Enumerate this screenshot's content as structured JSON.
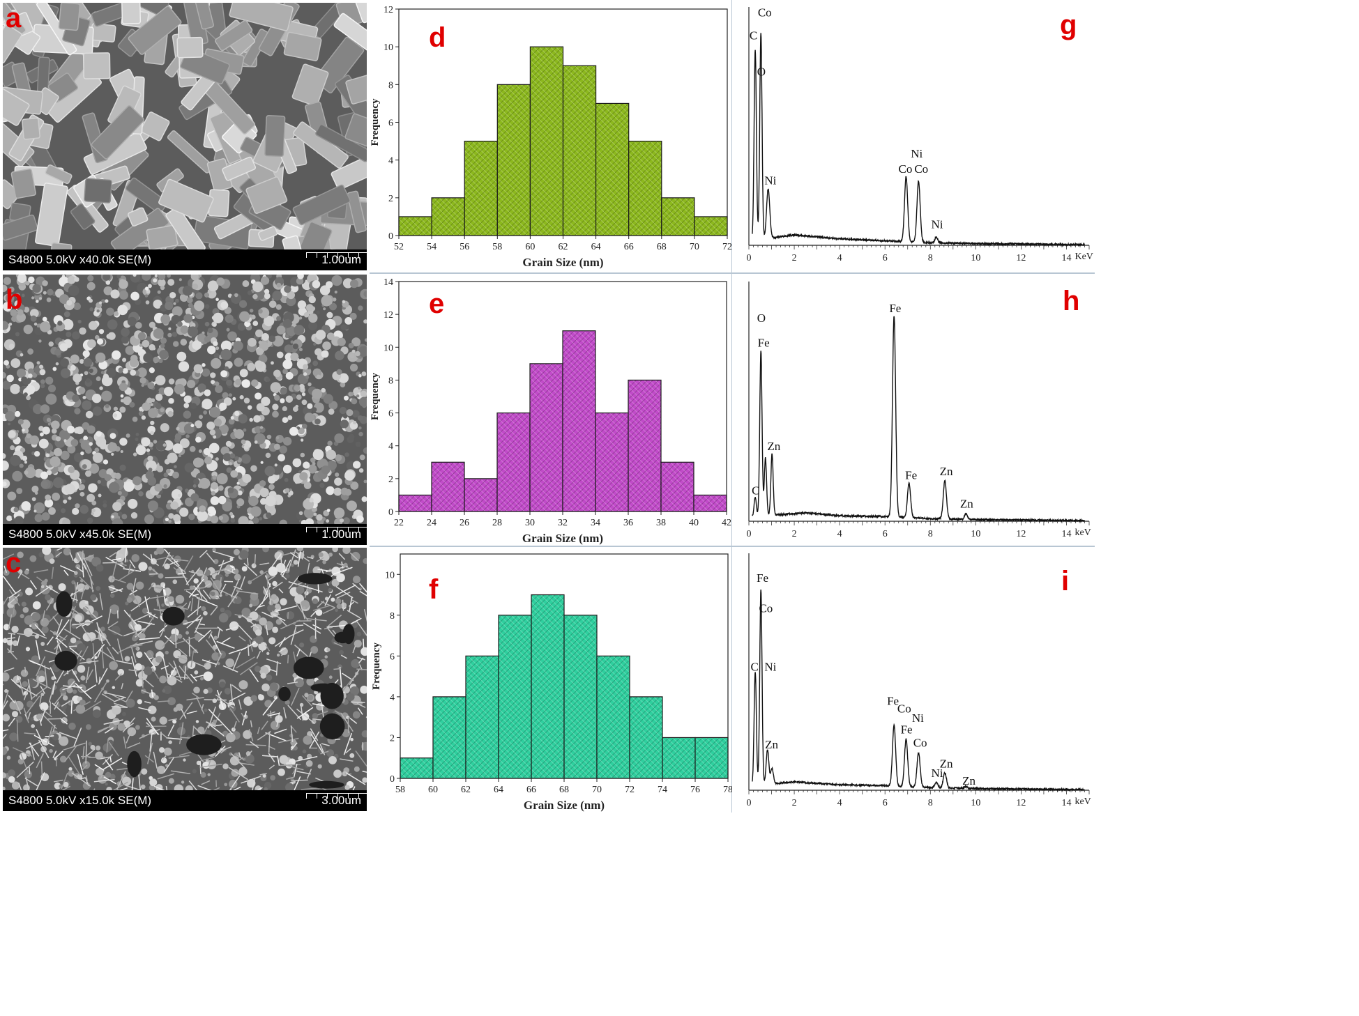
{
  "panels": [
    {
      "id": "a",
      "kind": "sem",
      "label": "a",
      "info": "S4800 5.0kV x40.0k SE(M)",
      "scale": "1.00um"
    },
    {
      "id": "b",
      "kind": "sem",
      "label": "b",
      "info": "S4800 5.0kV x45.0k SE(M)",
      "scale": "1.00um"
    },
    {
      "id": "c",
      "kind": "sem",
      "label": "c",
      "info": "S4800 5.0kV x15.0k SE(M)",
      "scale": "3.00um"
    },
    {
      "id": "d",
      "kind": "hist",
      "label": "d"
    },
    {
      "id": "e",
      "kind": "hist",
      "label": "e"
    },
    {
      "id": "f",
      "kind": "hist",
      "label": "f"
    },
    {
      "id": "g",
      "kind": "eds",
      "label": "g"
    },
    {
      "id": "h",
      "kind": "eds",
      "label": "h"
    },
    {
      "id": "i",
      "kind": "eds",
      "label": "i"
    }
  ],
  "colors": {
    "hist_d": "#8cb81e",
    "hist_e": "#c14bc9",
    "hist_f": "#2fcf9e",
    "label": "#e00000"
  },
  "chart_data": [
    {
      "id": "d",
      "type": "bar",
      "xlabel": "Grain Size (nm)",
      "ylabel": "Frequency",
      "bin_edges": [
        52,
        54,
        56,
        58,
        60,
        62,
        64,
        66,
        68,
        70,
        72
      ],
      "values": [
        1,
        2,
        5,
        8,
        10,
        9,
        7,
        5,
        2,
        1
      ],
      "xlim": [
        52,
        72
      ],
      "ylim": [
        0,
        12
      ],
      "yticks": [
        0,
        2,
        4,
        6,
        8,
        10,
        12
      ],
      "xticks": [
        52,
        54,
        56,
        58,
        60,
        62,
        64,
        66,
        68,
        70,
        72
      ]
    },
    {
      "id": "e",
      "type": "bar",
      "xlabel": "Grain Size (nm)",
      "ylabel": "Frequency",
      "bin_edges": [
        22,
        24,
        26,
        28,
        30,
        32,
        34,
        36,
        38,
        40,
        42
      ],
      "values": [
        1,
        3,
        2,
        6,
        9,
        11,
        6,
        8,
        3,
        1
      ],
      "xlim": [
        22,
        42
      ],
      "ylim": [
        0,
        14
      ],
      "yticks": [
        0,
        2,
        4,
        6,
        8,
        10,
        12,
        14
      ],
      "xticks": [
        22,
        24,
        26,
        28,
        30,
        32,
        34,
        36,
        38,
        40,
        42
      ]
    },
    {
      "id": "f",
      "type": "bar",
      "xlabel": "Grain Size (nm)",
      "ylabel": "Frequency",
      "bin_edges": [
        58,
        60,
        62,
        64,
        66,
        68,
        70,
        72,
        74,
        76,
        78
      ],
      "values": [
        1,
        4,
        6,
        8,
        9,
        8,
        6,
        4,
        2,
        2
      ],
      "xlim": [
        58,
        78
      ],
      "ylim": [
        0,
        11
      ],
      "yticks": [
        0,
        2,
        4,
        6,
        8,
        10
      ],
      "xticks": [
        58,
        60,
        62,
        64,
        66,
        68,
        70,
        72,
        74,
        76,
        78
      ]
    },
    {
      "id": "g",
      "type": "line",
      "xunit": "KeV",
      "xlim": [
        0,
        15
      ],
      "xticks": [
        0,
        2,
        4,
        6,
        8,
        10,
        12,
        14
      ],
      "peaks": [
        {
          "x": 0.28,
          "y": 100,
          "w": 0.05
        },
        {
          "x": 0.53,
          "y": 108,
          "w": 0.05
        },
        {
          "x": 0.85,
          "y": 26,
          "w": 0.07
        },
        {
          "x": 6.93,
          "y": 34,
          "w": 0.07
        },
        {
          "x": 7.48,
          "y": 32,
          "w": 0.07
        },
        {
          "x": 8.26,
          "y": 3,
          "w": 0.06
        }
      ],
      "baseline": [
        [
          0,
          2
        ],
        [
          2,
          5
        ],
        [
          4,
          3
        ],
        [
          6,
          2
        ],
        [
          8,
          1
        ],
        [
          10,
          0.5
        ],
        [
          14,
          0
        ]
      ],
      "labels": [
        {
          "text": "C",
          "x": 0.2,
          "y": 108
        },
        {
          "text": "Co",
          "x": 0.7,
          "y": 120
        },
        {
          "text": "O",
          "x": 0.55,
          "y": 89
        },
        {
          "text": "Ni",
          "x": 0.95,
          "y": 32
        },
        {
          "text": "Ni",
          "x": 7.4,
          "y": 46
        },
        {
          "text": "Co",
          "x": 6.9,
          "y": 38
        },
        {
          "text": "Co",
          "x": 7.6,
          "y": 38
        },
        {
          "text": "Ni",
          "x": 8.3,
          "y": 9
        }
      ]
    },
    {
      "id": "h",
      "type": "line",
      "xunit": "keV",
      "xlim": [
        0,
        15
      ],
      "xticks": [
        0,
        2,
        4,
        6,
        8,
        10,
        12,
        14
      ],
      "peaks": [
        {
          "x": 0.28,
          "y": 10,
          "w": 0.05
        },
        {
          "x": 0.53,
          "y": 86,
          "w": 0.05
        },
        {
          "x": 0.73,
          "y": 30,
          "w": 0.05
        },
        {
          "x": 1.02,
          "y": 32,
          "w": 0.05
        },
        {
          "x": 6.4,
          "y": 105,
          "w": 0.07
        },
        {
          "x": 7.06,
          "y": 18,
          "w": 0.07
        },
        {
          "x": 8.64,
          "y": 20,
          "w": 0.07
        },
        {
          "x": 9.57,
          "y": 3,
          "w": 0.06
        }
      ],
      "baseline": [
        [
          0,
          2
        ],
        [
          2.5,
          4
        ],
        [
          4,
          2.5
        ],
        [
          6,
          2
        ],
        [
          8,
          1
        ],
        [
          10,
          0.5
        ],
        [
          14,
          0
        ]
      ],
      "labels": [
        {
          "text": "O",
          "x": 0.55,
          "y": 104
        },
        {
          "text": "Fe",
          "x": 0.65,
          "y": 91
        },
        {
          "text": "Zn",
          "x": 1.1,
          "y": 37
        },
        {
          "text": "C",
          "x": 0.3,
          "y": 14
        },
        {
          "text": "Fe",
          "x": 6.45,
          "y": 109
        },
        {
          "text": "Fe",
          "x": 7.15,
          "y": 22
        },
        {
          "text": "Zn",
          "x": 8.7,
          "y": 24
        },
        {
          "text": "Zn",
          "x": 9.6,
          "y": 7
        }
      ]
    },
    {
      "id": "i",
      "type": "line",
      "xunit": "keV",
      "xlim": [
        0,
        15
      ],
      "xticks": [
        0,
        2,
        4,
        6,
        8,
        10,
        12,
        14
      ],
      "peaks": [
        {
          "x": 0.28,
          "y": 60,
          "w": 0.05
        },
        {
          "x": 0.53,
          "y": 103,
          "w": 0.05
        },
        {
          "x": 0.82,
          "y": 18,
          "w": 0.06
        },
        {
          "x": 1.02,
          "y": 8,
          "w": 0.06
        },
        {
          "x": 6.4,
          "y": 32,
          "w": 0.07
        },
        {
          "x": 6.93,
          "y": 25,
          "w": 0.07
        },
        {
          "x": 7.48,
          "y": 18,
          "w": 0.07
        },
        {
          "x": 8.26,
          "y": 3,
          "w": 0.06
        },
        {
          "x": 8.64,
          "y": 8,
          "w": 0.07
        },
        {
          "x": 9.57,
          "y": 1,
          "w": 0.06
        }
      ],
      "baseline": [
        [
          0,
          2
        ],
        [
          2,
          4
        ],
        [
          4,
          2.5
        ],
        [
          6,
          2
        ],
        [
          8,
          1
        ],
        [
          10,
          0.5
        ],
        [
          14,
          0
        ]
      ],
      "labels": [
        {
          "text": "Fe",
          "x": 0.6,
          "y": 110
        },
        {
          "text": "Co",
          "x": 0.75,
          "y": 94
        },
        {
          "text": "C",
          "x": 0.25,
          "y": 63
        },
        {
          "text": "Ni",
          "x": 0.95,
          "y": 63
        },
        {
          "text": "Zn",
          "x": 1.0,
          "y": 22
        },
        {
          "text": "Fe",
          "x": 6.35,
          "y": 45
        },
        {
          "text": "Co",
          "x": 6.85,
          "y": 41
        },
        {
          "text": "Ni",
          "x": 7.45,
          "y": 36
        },
        {
          "text": "Fe",
          "x": 6.95,
          "y": 30
        },
        {
          "text": "Co",
          "x": 7.55,
          "y": 23
        },
        {
          "text": "Zn",
          "x": 8.7,
          "y": 12
        },
        {
          "text": "Ni",
          "x": 8.3,
          "y": 7
        },
        {
          "text": "Zn",
          "x": 9.7,
          "y": 3
        }
      ]
    }
  ]
}
